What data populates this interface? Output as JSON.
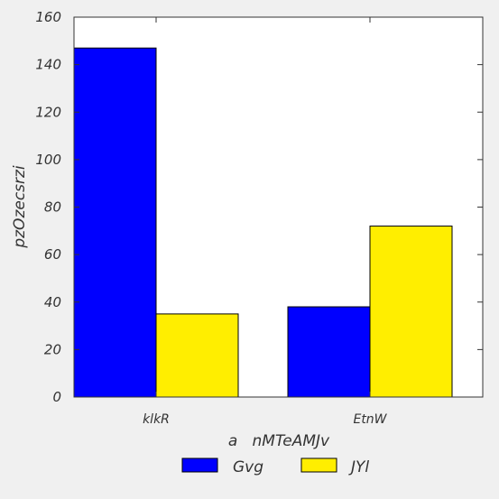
{
  "chart_data": {
    "type": "bar",
    "title": "",
    "xlabel": "a   nMTeAMJv",
    "ylabel": "pzOzecsrzi",
    "categories": [
      "klkR",
      "EtnW"
    ],
    "series": [
      {
        "name": "Gvg",
        "values": [
          147,
          38
        ],
        "color": "#0000ff"
      },
      {
        "name": "JYl",
        "values": [
          35,
          72
        ],
        "color": "#ffee00"
      }
    ],
    "ylim": [
      0,
      160
    ],
    "yticks": [
      0,
      20,
      40,
      60,
      80,
      100,
      120,
      140,
      160
    ],
    "grid": false,
    "legend": "bottom-center"
  }
}
